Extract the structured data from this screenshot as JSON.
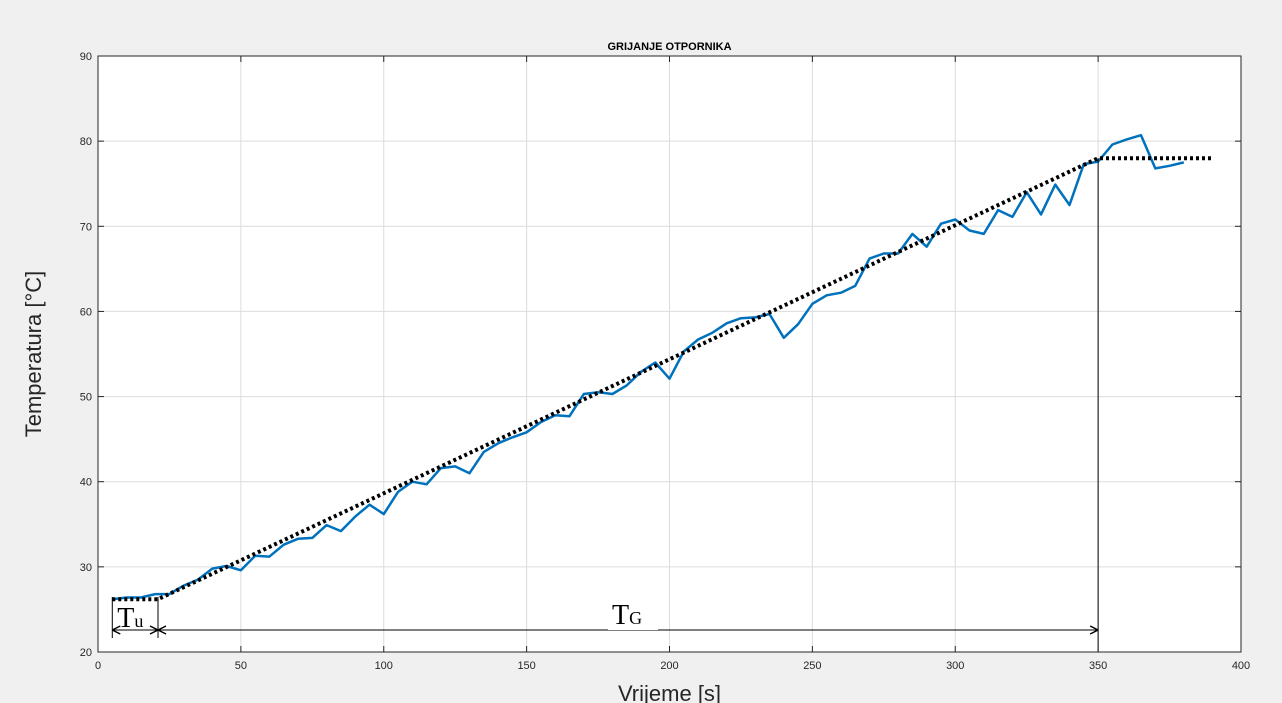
{
  "chart_data": {
    "type": "line",
    "title": "GRIJANJE OTPORNIKA",
    "xlabel": "Vrijeme [s]",
    "ylabel": "Temperatura [°C]",
    "xlim": [
      0,
      400
    ],
    "ylim": [
      20,
      90
    ],
    "xticks": [
      0,
      50,
      100,
      150,
      200,
      250,
      300,
      350,
      400
    ],
    "yticks": [
      20,
      30,
      40,
      50,
      60,
      70,
      80,
      90
    ],
    "grid": true,
    "series": [
      {
        "color": "#0072bd",
        "style": "solid",
        "x": [
          5,
          10,
          15,
          20,
          25,
          30,
          35,
          40,
          45,
          50,
          55,
          60,
          65,
          70,
          75,
          80,
          85,
          90,
          95,
          100,
          105,
          110,
          115,
          120,
          125,
          130,
          135,
          140,
          145,
          150,
          155,
          160,
          165,
          170,
          175,
          180,
          185,
          190,
          195,
          200,
          205,
          210,
          215,
          220,
          225,
          230,
          235,
          240,
          245,
          250,
          255,
          260,
          265,
          270,
          275,
          280,
          285,
          290,
          295,
          300,
          305,
          310,
          315,
          320,
          325,
          330,
          335,
          340,
          345,
          350,
          355,
          360,
          365,
          370,
          375,
          380
        ],
        "y": [
          26.2,
          26.4,
          26.4,
          26.8,
          26.8,
          27.8,
          28.5,
          29.8,
          30.1,
          29.6,
          31.3,
          31.2,
          32.6,
          33.3,
          33.4,
          34.9,
          34.2,
          35.9,
          37.3,
          36.2,
          38.8,
          40.0,
          39.7,
          41.6,
          41.8,
          41.0,
          43.5,
          44.5,
          45.2,
          45.8,
          47.0,
          47.8,
          47.7,
          50.3,
          50.5,
          50.3,
          51.3,
          52.9,
          54.0,
          52.1,
          55.3,
          56.7,
          57.5,
          58.6,
          59.2,
          59.3,
          59.7,
          56.9,
          58.5,
          60.9,
          61.9,
          62.2,
          63.0,
          66.2,
          66.8,
          66.8,
          69.1,
          67.6,
          70.3,
          70.8,
          69.5,
          69.1,
          71.9,
          71.1,
          74.0,
          71.4,
          74.9,
          72.5,
          77.3,
          77.6,
          79.6,
          80.2,
          80.7,
          76.8,
          77.1,
          77.5
        ]
      },
      {
        "color": "#000000",
        "style": "dotted",
        "x": [
          5,
          21,
          350,
          390
        ],
        "y": [
          26.2,
          26.2,
          78.0,
          78.0
        ]
      }
    ],
    "annotations": {
      "tu_label": "T",
      "tu_sub": "u",
      "tg_label": "T",
      "tg_sub": "G",
      "tu_range": [
        5,
        21
      ],
      "tg_range": [
        21,
        350
      ],
      "vline_x": 350
    }
  }
}
